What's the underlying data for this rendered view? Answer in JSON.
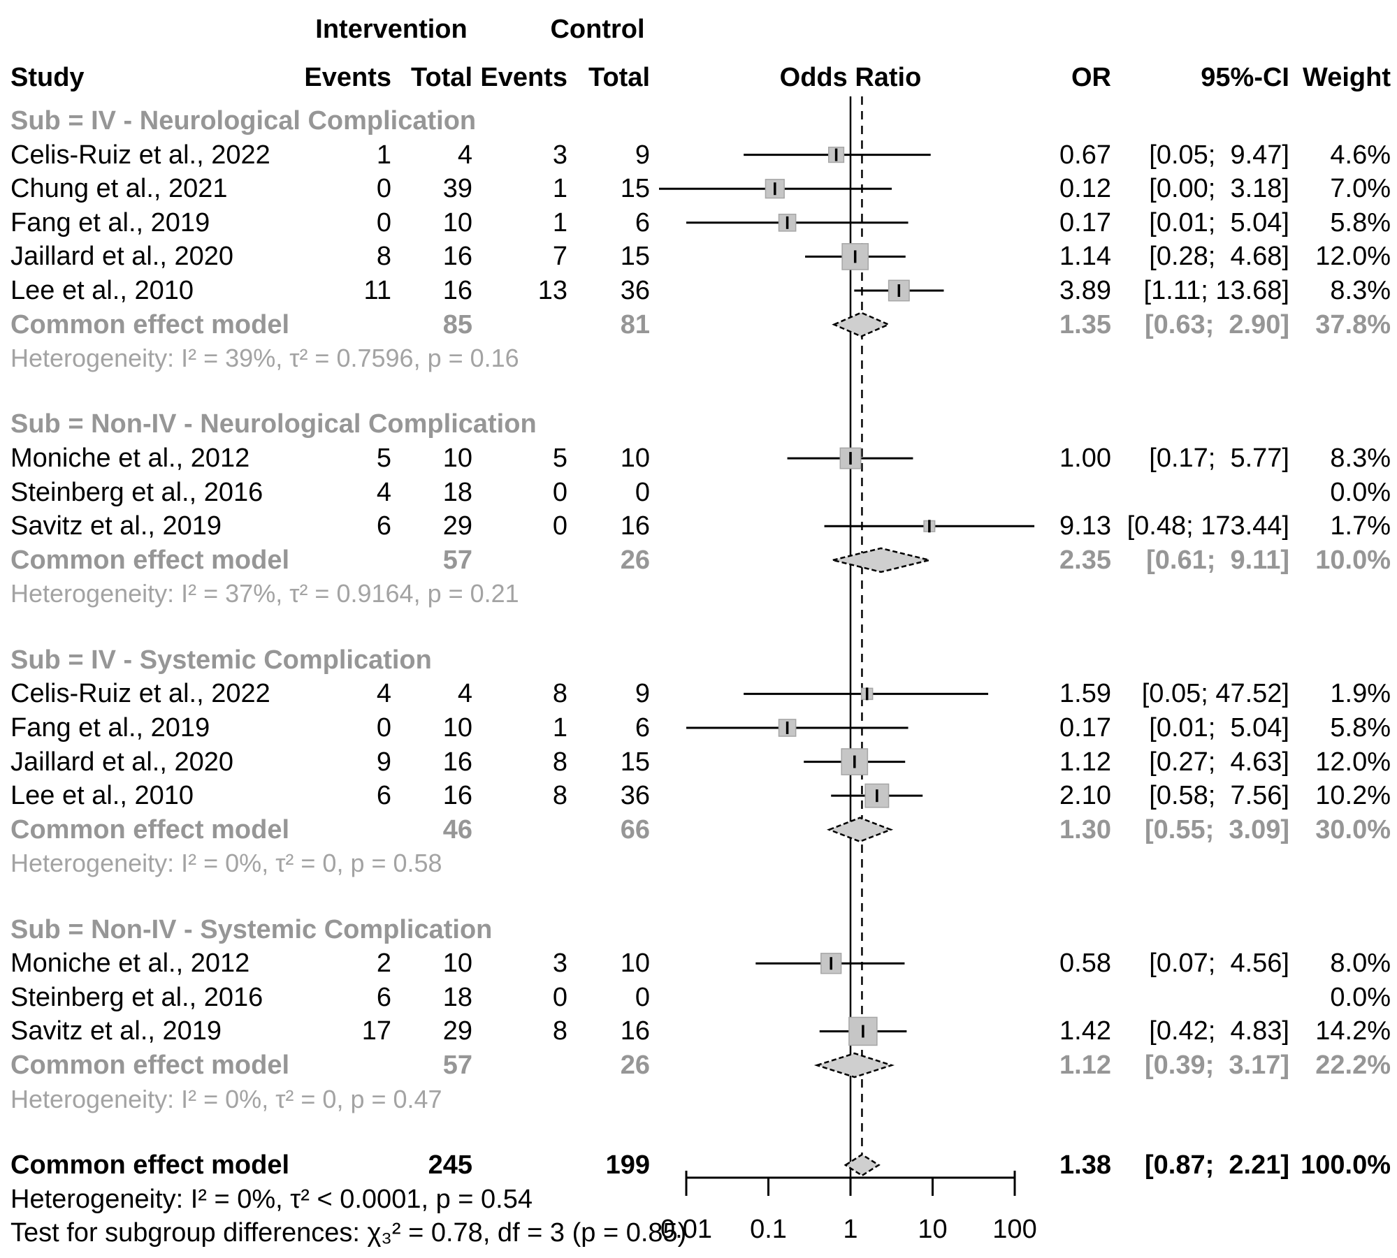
{
  "columns": {
    "study": "Study",
    "intervention": "Intervention",
    "control": "Control",
    "events": "Events",
    "total": "Total",
    "odds_ratio": "Odds Ratio",
    "or": "OR",
    "ci": "95%-CI",
    "weight": "Weight"
  },
  "colors": {
    "square_fill": "#c6c6c6",
    "square_stroke": "#a6a6a6",
    "diamond_fill": "#cfcfcf",
    "line": "#000000",
    "gray_text": "#969696",
    "het_text": "#a3a3a3"
  },
  "chart_data": {
    "type": "scatter",
    "variant": "forest-plot",
    "x_axis": {
      "scale": "log",
      "ticks": [
        0.01,
        0.1,
        1,
        10,
        100
      ],
      "tick_labels": [
        "0.01",
        "0.1",
        "1",
        "10",
        "100"
      ]
    },
    "reference_line": 1,
    "overall_estimate_line": 1.38,
    "groups": [
      {
        "title": "Sub = IV - Neurological Complication",
        "studies": [
          {
            "study": "Celis-Ruiz et al., 2022",
            "int_events": "1",
            "int_total": "4",
            "ctrl_events": "3",
            "ctrl_total": "9",
            "or": 0.67,
            "ci_low": 0.05,
            "ci_high": 9.47,
            "or_text": "0.67",
            "ci_text": "[0.05;  9.47]",
            "weight": 4.6,
            "weight_text": "4.6%"
          },
          {
            "study": "Chung et al., 2021",
            "int_events": "0",
            "int_total": "39",
            "ctrl_events": "1",
            "ctrl_total": "15",
            "or": 0.12,
            "ci_low": 0.0,
            "ci_high": 3.18,
            "or_text": "0.12",
            "ci_text": "[0.00;  3.18]",
            "weight": 7.0,
            "weight_text": "7.0%"
          },
          {
            "study": "Fang et al., 2019",
            "int_events": "0",
            "int_total": "10",
            "ctrl_events": "1",
            "ctrl_total": "6",
            "or": 0.17,
            "ci_low": 0.01,
            "ci_high": 5.04,
            "or_text": "0.17",
            "ci_text": "[0.01;  5.04]",
            "weight": 5.8,
            "weight_text": "5.8%"
          },
          {
            "study": "Jaillard et al., 2020",
            "int_events": "8",
            "int_total": "16",
            "ctrl_events": "7",
            "ctrl_total": "15",
            "or": 1.14,
            "ci_low": 0.28,
            "ci_high": 4.68,
            "or_text": "1.14",
            "ci_text": "[0.28;  4.68]",
            "weight": 12.0,
            "weight_text": "12.0%"
          },
          {
            "study": "Lee et al., 2010",
            "int_events": "11",
            "int_total": "16",
            "ctrl_events": "13",
            "ctrl_total": "36",
            "or": 3.89,
            "ci_low": 1.11,
            "ci_high": 13.68,
            "or_text": "3.89",
            "ci_text": "[1.11; 13.68]",
            "weight": 8.3,
            "weight_text": "8.3%"
          }
        ],
        "common": {
          "label": "Common effect model",
          "int_total": "85",
          "ctrl_total": "81",
          "or": 1.35,
          "ci_low": 0.63,
          "ci_high": 2.9,
          "or_text": "1.35",
          "ci_text": "[0.63;  2.90]",
          "weight_text": "37.8%"
        },
        "heterogeneity": "Heterogeneity: I² = 39%, τ² = 0.7596, p = 0.16"
      },
      {
        "title": "Sub = Non-IV - Neurological Complication",
        "studies": [
          {
            "study": "Moniche et al., 2012",
            "int_events": "5",
            "int_total": "10",
            "ctrl_events": "5",
            "ctrl_total": "10",
            "or": 1.0,
            "ci_low": 0.17,
            "ci_high": 5.77,
            "or_text": "1.00",
            "ci_text": "[0.17;  5.77]",
            "weight": 8.3,
            "weight_text": "8.3%"
          },
          {
            "study": "Steinberg et al., 2016",
            "int_events": "4",
            "int_total": "18",
            "ctrl_events": "0",
            "ctrl_total": "0",
            "or": null,
            "or_text": "",
            "ci_text": "",
            "weight": 0,
            "weight_text": "0.0%"
          },
          {
            "study": "Savitz et al., 2019",
            "int_events": "6",
            "int_total": "29",
            "ctrl_events": "0",
            "ctrl_total": "16",
            "or": 9.13,
            "ci_low": 0.48,
            "ci_high": 173.44,
            "or_text": "9.13",
            "ci_text": "[0.48; 173.44]",
            "weight": 1.7,
            "weight_text": "1.7%"
          }
        ],
        "common": {
          "label": "Common effect model",
          "int_total": "57",
          "ctrl_total": "26",
          "or": 2.35,
          "ci_low": 0.61,
          "ci_high": 9.11,
          "or_text": "2.35",
          "ci_text": "[0.61;  9.11]",
          "weight_text": "10.0%"
        },
        "heterogeneity": "Heterogeneity: I² = 37%, τ² = 0.9164, p = 0.21"
      },
      {
        "title": "Sub = IV - Systemic Complication",
        "studies": [
          {
            "study": "Celis-Ruiz et al., 2022",
            "int_events": "4",
            "int_total": "4",
            "ctrl_events": "8",
            "ctrl_total": "9",
            "or": 1.59,
            "ci_low": 0.05,
            "ci_high": 47.52,
            "or_text": "1.59",
            "ci_text": "[0.05; 47.52]",
            "weight": 1.9,
            "weight_text": "1.9%"
          },
          {
            "study": "Fang et al., 2019",
            "int_events": "0",
            "int_total": "10",
            "ctrl_events": "1",
            "ctrl_total": "6",
            "or": 0.17,
            "ci_low": 0.01,
            "ci_high": 5.04,
            "or_text": "0.17",
            "ci_text": "[0.01;  5.04]",
            "weight": 5.8,
            "weight_text": "5.8%"
          },
          {
            "study": "Jaillard et al., 2020",
            "int_events": "9",
            "int_total": "16",
            "ctrl_events": "8",
            "ctrl_total": "15",
            "or": 1.12,
            "ci_low": 0.27,
            "ci_high": 4.63,
            "or_text": "1.12",
            "ci_text": "[0.27;  4.63]",
            "weight": 12.0,
            "weight_text": "12.0%"
          },
          {
            "study": "Lee et al., 2010",
            "int_events": "6",
            "int_total": "16",
            "ctrl_events": "8",
            "ctrl_total": "36",
            "or": 2.1,
            "ci_low": 0.58,
            "ci_high": 7.56,
            "or_text": "2.10",
            "ci_text": "[0.58;  7.56]",
            "weight": 10.2,
            "weight_text": "10.2%"
          }
        ],
        "common": {
          "label": "Common effect model",
          "int_total": "46",
          "ctrl_total": "66",
          "or": 1.3,
          "ci_low": 0.55,
          "ci_high": 3.09,
          "or_text": "1.30",
          "ci_text": "[0.55;  3.09]",
          "weight_text": "30.0%"
        },
        "heterogeneity": "Heterogeneity: I² = 0%, τ² = 0, p = 0.58"
      },
      {
        "title": "Sub = Non-IV - Systemic Complication",
        "studies": [
          {
            "study": "Moniche et al., 2012",
            "int_events": "2",
            "int_total": "10",
            "ctrl_events": "3",
            "ctrl_total": "10",
            "or": 0.58,
            "ci_low": 0.07,
            "ci_high": 4.56,
            "or_text": "0.58",
            "ci_text": "[0.07;  4.56]",
            "weight": 8.0,
            "weight_text": "8.0%"
          },
          {
            "study": "Steinberg et al., 2016",
            "int_events": "6",
            "int_total": "18",
            "ctrl_events": "0",
            "ctrl_total": "0",
            "or": null,
            "or_text": "",
            "ci_text": "",
            "weight": 0,
            "weight_text": "0.0%"
          },
          {
            "study": "Savitz et al., 2019",
            "int_events": "17",
            "int_total": "29",
            "ctrl_events": "8",
            "ctrl_total": "16",
            "or": 1.42,
            "ci_low": 0.42,
            "ci_high": 4.83,
            "or_text": "1.42",
            "ci_text": "[0.42;  4.83]",
            "weight": 14.2,
            "weight_text": "14.2%"
          }
        ],
        "common": {
          "label": "Common effect model",
          "int_total": "57",
          "ctrl_total": "26",
          "or": 1.12,
          "ci_low": 0.39,
          "ci_high": 3.17,
          "or_text": "1.12",
          "ci_text": "[0.39;  3.17]",
          "weight_text": "22.2%"
        },
        "heterogeneity": "Heterogeneity: I² = 0%, τ² = 0, p = 0.47"
      }
    ],
    "overall": {
      "label": "Common effect model",
      "int_total": "245",
      "ctrl_total": "199",
      "or": 1.38,
      "ci_low": 0.87,
      "ci_high": 2.21,
      "or_text": "1.38",
      "ci_text": "[0.87;  2.21]",
      "weight_text": "100.0%",
      "heterogeneity": "Heterogeneity: I² = 0%, τ² < 0.0001, p = 0.54",
      "subgroup_test": "Test for subgroup differences: χ₃² = 0.78, df = 3 (p = 0.85)"
    }
  }
}
